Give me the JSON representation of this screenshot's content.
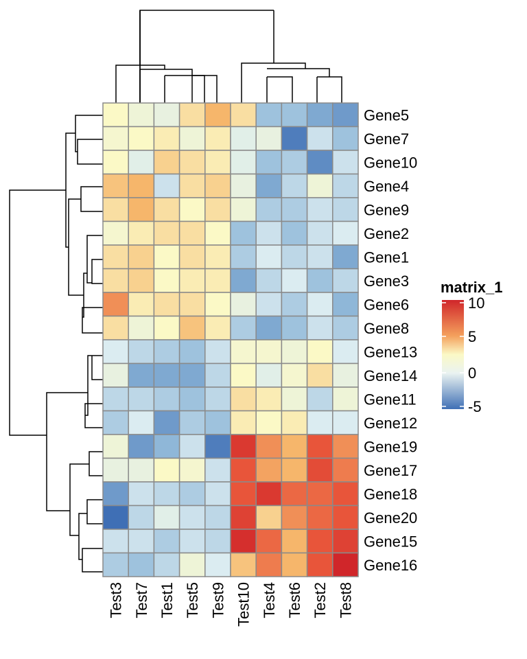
{
  "chart_data": {
    "type": "heatmap",
    "columns": [
      "Test3",
      "Test7",
      "Test1",
      "Test5",
      "Test9",
      "Test10",
      "Test4",
      "Test6",
      "Test2",
      "Test8"
    ],
    "rows": [
      "Gene5",
      "Gene7",
      "Gene10",
      "Gene4",
      "Gene9",
      "Gene2",
      "Gene1",
      "Gene3",
      "Gene6",
      "Gene8",
      "Gene13",
      "Gene14",
      "Gene11",
      "Gene12",
      "Gene19",
      "Gene17",
      "Gene18",
      "Gene20",
      "Gene15",
      "Gene16"
    ],
    "values": [
      [
        2.5,
        1.5,
        1,
        3.5,
        5,
        3.5,
        -2,
        -2,
        -3,
        -3.5
      ],
      [
        2,
        2.5,
        3,
        1.5,
        3,
        0.5,
        1,
        -4.5,
        -0.5,
        -2
      ],
      [
        2.5,
        0.5,
        4,
        3.5,
        3,
        0.5,
        -2,
        -1.5,
        -4,
        -0.5
      ],
      [
        4.5,
        5,
        -0.5,
        3.5,
        4,
        1,
        -3,
        -1,
        1.5,
        -1
      ],
      [
        3.5,
        5,
        3.5,
        2.5,
        3.5,
        1.5,
        -1.5,
        -1.5,
        -0.5,
        -1
      ],
      [
        2,
        3,
        3.5,
        3.5,
        2.5,
        -2,
        -0.5,
        -2,
        -0.5,
        0
      ],
      [
        3.5,
        4,
        2.5,
        3.5,
        3,
        -1.5,
        0,
        -1,
        -0.5,
        -3
      ],
      [
        3.5,
        4,
        2.5,
        3,
        3,
        -3,
        -1,
        0,
        -2,
        -1
      ],
      [
        6,
        3,
        3.5,
        3.5,
        2.5,
        1,
        -0.5,
        -1.5,
        0,
        -2.5
      ],
      [
        3.5,
        1.5,
        2.5,
        4.5,
        3,
        -1.5,
        -3,
        -2,
        -0.5,
        -1.5
      ],
      [
        0,
        -1,
        -1.5,
        -2,
        -0.5,
        2,
        2,
        1.5,
        2.5,
        0
      ],
      [
        1,
        -3,
        -3,
        -3,
        -1,
        2.5,
        0.5,
        2,
        3.5,
        1
      ],
      [
        -1,
        -1,
        -1.5,
        -2,
        -1,
        3.5,
        3,
        1.5,
        -1,
        1.5
      ],
      [
        -1.5,
        0,
        -3.5,
        -1.5,
        -2,
        3,
        2.5,
        3,
        0,
        0
      ],
      [
        1.5,
        -3.5,
        -2.5,
        -0.5,
        -4.5,
        9,
        6,
        5,
        7.5,
        6
      ],
      [
        1,
        1,
        2.5,
        2,
        -0.5,
        7.5,
        5.5,
        5,
        8,
        6.5
      ],
      [
        -3.5,
        -0.5,
        -1,
        -1.5,
        -0.5,
        7.5,
        9,
        7,
        7,
        7.5
      ],
      [
        -5,
        -1,
        0.5,
        -0.5,
        -1,
        8.5,
        4,
        6,
        7,
        7.5
      ],
      [
        -0.5,
        -0.5,
        -1.5,
        -0.5,
        -1,
        9.5,
        7,
        5,
        7.5,
        8.5
      ],
      [
        -1.5,
        -2,
        -1,
        1.5,
        0,
        4.5,
        6.5,
        5,
        7.5,
        10
      ]
    ],
    "legend": {
      "title": "matrix_1",
      "ticks": [
        10,
        5,
        0,
        -5
      ],
      "tick_labels": [
        "10",
        "5",
        "0",
        "-5"
      ],
      "range": [
        -5,
        10
      ],
      "colors": [
        "#3f6fb5",
        "#fbf9c6",
        "#d0262a"
      ],
      "placement": "right"
    },
    "grid_color": "#8a8a8a"
  }
}
